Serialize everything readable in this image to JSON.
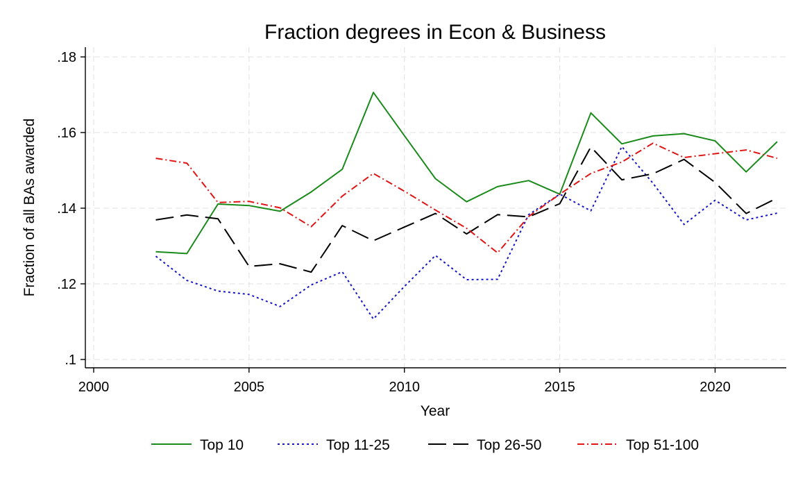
{
  "chart_data": {
    "type": "line",
    "title": "Fraction degrees in Econ & Business",
    "xlabel": "Year",
    "ylabel": "Fraction of all BAs awarded",
    "xlim": [
      2000,
      2022
    ],
    "ylim": [
      0.1,
      0.18
    ],
    "xticks": [
      2000,
      2005,
      2010,
      2015,
      2020
    ],
    "yticks": [
      0.1,
      0.12,
      0.14,
      0.16,
      0.18
    ],
    "ytick_labels": [
      ".1",
      ".12",
      ".14",
      ".16",
      ".18"
    ],
    "grid": true,
    "legend_position": "bottom",
    "x": [
      2002,
      2003,
      2004,
      2005,
      2006,
      2007,
      2008,
      2009,
      2010,
      2011,
      2012,
      2013,
      2014,
      2015,
      2016,
      2017,
      2018,
      2019,
      2020,
      2021,
      2022
    ],
    "series": [
      {
        "name": "Top 10",
        "color": "#1a8a1a",
        "style": "solid",
        "values": [
          0.1285,
          0.128,
          0.1411,
          0.1407,
          0.1392,
          0.1443,
          0.1503,
          0.1706,
          0.1592,
          0.1478,
          0.1417,
          0.1457,
          0.1473,
          0.1437,
          0.1652,
          0.157,
          0.1591,
          0.1597,
          0.1578,
          0.1496,
          0.1576
        ]
      },
      {
        "name": "Top 11-25",
        "color": "#1414c8",
        "style": "dotted",
        "values": [
          0.1273,
          0.1209,
          0.1181,
          0.1172,
          0.114,
          0.1197,
          0.1232,
          0.1107,
          0.1193,
          0.1275,
          0.1211,
          0.1212,
          0.1383,
          0.1437,
          0.1393,
          0.1563,
          0.1466,
          0.1357,
          0.1421,
          0.1369,
          0.1387
        ]
      },
      {
        "name": "Top 26-50",
        "color": "#000000",
        "style": "longdash",
        "values": [
          0.1369,
          0.1382,
          0.1372,
          0.1246,
          0.1253,
          0.1231,
          0.1354,
          0.1314,
          0.135,
          0.1386,
          0.1332,
          0.1383,
          0.1377,
          0.1412,
          0.1562,
          0.1475,
          0.1491,
          0.1529,
          0.1468,
          0.1386,
          0.1427
        ]
      },
      {
        "name": "Top 51-100",
        "color": "#e01414",
        "style": "dashdot",
        "values": [
          0.1532,
          0.1519,
          0.1415,
          0.1418,
          0.1401,
          0.1351,
          0.1432,
          0.1492,
          0.1445,
          0.1395,
          0.1347,
          0.1282,
          0.1378,
          0.1437,
          0.1492,
          0.1522,
          0.1572,
          0.1534,
          0.1544,
          0.1554,
          0.1532
        ]
      }
    ]
  }
}
